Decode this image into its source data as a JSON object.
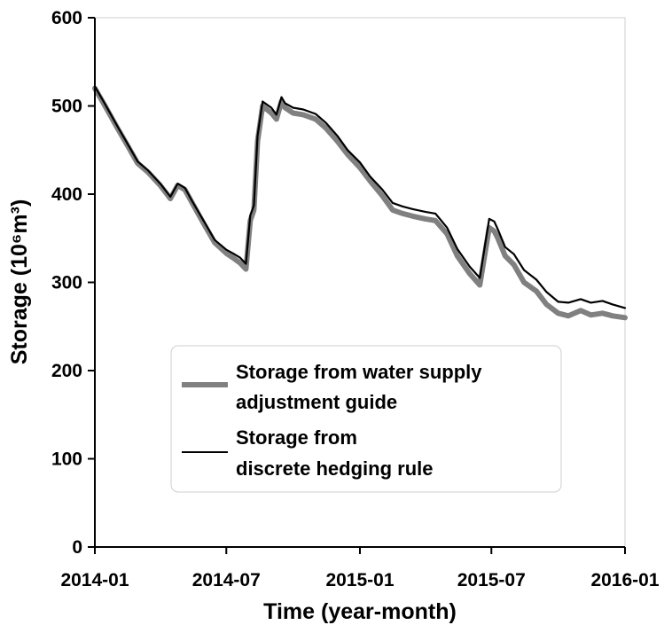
{
  "chart_data": {
    "type": "line",
    "title": "",
    "xlabel": "Time (year-month)",
    "ylabel": "Storage (10⁶m³)",
    "ylim": [
      0,
      600
    ],
    "xlim": [
      "2014-01-01",
      "2016-01-01"
    ],
    "grid": false,
    "legend_position": "center-bottom",
    "y_ticks": [
      "0",
      "100",
      "200",
      "300",
      "400",
      "500",
      "600"
    ],
    "x_ticks": [
      "2014-01",
      "2014-07",
      "2015-01",
      "2015-07",
      "2016-01"
    ],
    "series": [
      {
        "name": "Storage from water supply adjustment guide",
        "name_lines": [
          "Storage from water supply",
          "adjustment guide"
        ],
        "color": "#808080",
        "x": [
          "2014-01-01",
          "2014-01-15",
          "2014-02-01",
          "2014-02-15",
          "2014-03-01",
          "2014-03-15",
          "2014-04-01",
          "2014-04-15",
          "2014-04-25",
          "2014-05-05",
          "2014-05-15",
          "2014-06-01",
          "2014-06-15",
          "2014-07-01",
          "2014-07-10",
          "2014-07-20",
          "2014-07-28",
          "2014-08-03",
          "2014-08-08",
          "2014-08-13",
          "2014-08-20",
          "2014-09-01",
          "2014-09-08",
          "2014-09-15",
          "2014-09-20",
          "2014-10-01",
          "2014-10-15",
          "2014-11-01",
          "2014-11-15",
          "2014-12-01",
          "2014-12-15",
          "2015-01-01",
          "2015-01-15",
          "2015-02-01",
          "2015-02-15",
          "2015-03-01",
          "2015-03-15",
          "2015-04-01",
          "2015-04-15",
          "2015-05-01",
          "2015-05-15",
          "2015-06-01",
          "2015-06-15",
          "2015-06-28",
          "2015-07-05",
          "2015-07-10",
          "2015-07-20",
          "2015-08-01",
          "2015-08-15",
          "2015-09-01",
          "2015-09-15",
          "2015-10-01",
          "2015-10-15",
          "2015-11-01",
          "2015-11-15",
          "2015-12-01",
          "2015-12-15",
          "2016-01-01"
        ],
        "y": [
          520,
          500,
          475,
          455,
          435,
          425,
          410,
          395,
          410,
          405,
          390,
          365,
          345,
          333,
          328,
          322,
          315,
          370,
          382,
          460,
          500,
          492,
          485,
          505,
          498,
          492,
          490,
          485,
          475,
          460,
          445,
          430,
          415,
          398,
          382,
          378,
          375,
          372,
          370,
          355,
          330,
          310,
          297,
          362,
          358,
          350,
          330,
          320,
          300,
          290,
          275,
          265,
          262,
          268,
          263,
          265,
          262,
          260
        ]
      },
      {
        "name": "Storage from discrete hedging rule",
        "name_lines": [
          "Storage from",
          "discrete hedging rule"
        ],
        "color": "#000000",
        "x": [
          "2014-01-01",
          "2014-01-15",
          "2014-02-01",
          "2014-02-15",
          "2014-03-01",
          "2014-03-15",
          "2014-04-01",
          "2014-04-15",
          "2014-04-25",
          "2014-05-05",
          "2014-05-15",
          "2014-06-01",
          "2014-06-15",
          "2014-07-01",
          "2014-07-10",
          "2014-07-20",
          "2014-07-28",
          "2014-08-03",
          "2014-08-08",
          "2014-08-13",
          "2014-08-20",
          "2014-09-01",
          "2014-09-08",
          "2014-09-15",
          "2014-09-20",
          "2014-10-01",
          "2014-10-15",
          "2014-11-01",
          "2014-11-15",
          "2014-12-01",
          "2014-12-15",
          "2015-01-01",
          "2015-01-15",
          "2015-02-01",
          "2015-02-15",
          "2015-03-01",
          "2015-03-15",
          "2015-04-01",
          "2015-04-15",
          "2015-05-01",
          "2015-05-15",
          "2015-06-01",
          "2015-06-15",
          "2015-06-28",
          "2015-07-05",
          "2015-07-10",
          "2015-07-20",
          "2015-08-01",
          "2015-08-15",
          "2015-09-01",
          "2015-09-15",
          "2015-10-01",
          "2015-10-15",
          "2015-11-01",
          "2015-11-15",
          "2015-12-01",
          "2015-12-15",
          "2016-01-01"
        ],
        "y": [
          522,
          502,
          477,
          457,
          437,
          427,
          412,
          397,
          412,
          407,
          392,
          368,
          348,
          337,
          333,
          328,
          321,
          376,
          387,
          466,
          505,
          498,
          490,
          510,
          503,
          498,
          496,
          491,
          481,
          466,
          450,
          436,
          420,
          405,
          390,
          386,
          383,
          380,
          378,
          362,
          338,
          318,
          305,
          372,
          369,
          360,
          340,
          332,
          314,
          303,
          289,
          278,
          277,
          281,
          277,
          279,
          275,
          271
        ]
      }
    ]
  }
}
